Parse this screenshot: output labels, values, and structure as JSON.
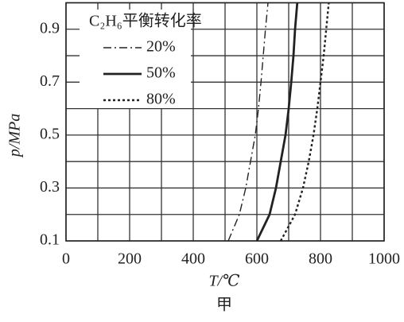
{
  "chart_data": {
    "type": "line",
    "xlabel": "T/℃",
    "ylabel": "p/MPa",
    "caption": "甲",
    "legend_title": "C₂H₆平衡转化率",
    "legend": "upper-left",
    "xlim": [
      0,
      1000
    ],
    "xticks": [
      0,
      200,
      400,
      600,
      800,
      1000
    ],
    "minor_xticks": [
      100,
      300,
      500,
      700,
      900
    ],
    "ylim": [
      0.1,
      1.0
    ],
    "yticks": [
      0.1,
      0.3,
      0.5,
      0.7,
      0.9
    ],
    "minor_yticks": [
      0.2,
      0.4,
      0.6,
      0.8,
      1.0
    ],
    "grid": true,
    "series": [
      {
        "name": "20%",
        "color": "#222222",
        "style": "dashdot",
        "x": [
          510,
          545,
          565,
          580,
          595,
          605,
          613,
          620,
          627,
          635
        ],
        "values": [
          0.1,
          0.2,
          0.3,
          0.4,
          0.5,
          0.6,
          0.7,
          0.8,
          0.9,
          1.0
        ]
      },
      {
        "name": "50%",
        "color": "#222222",
        "style": "solid",
        "x": [
          600,
          640,
          660,
          675,
          690,
          700,
          708,
          715,
          720,
          727
        ],
        "values": [
          0.1,
          0.2,
          0.3,
          0.4,
          0.5,
          0.6,
          0.7,
          0.8,
          0.9,
          1.0
        ]
      },
      {
        "name": "80%",
        "color": "#222222",
        "style": "dotted",
        "x": [
          675,
          720,
          745,
          763,
          778,
          790,
          800,
          810,
          818,
          826
        ],
        "values": [
          0.1,
          0.2,
          0.3,
          0.4,
          0.5,
          0.6,
          0.7,
          0.8,
          0.9,
          1.0
        ]
      }
    ]
  }
}
